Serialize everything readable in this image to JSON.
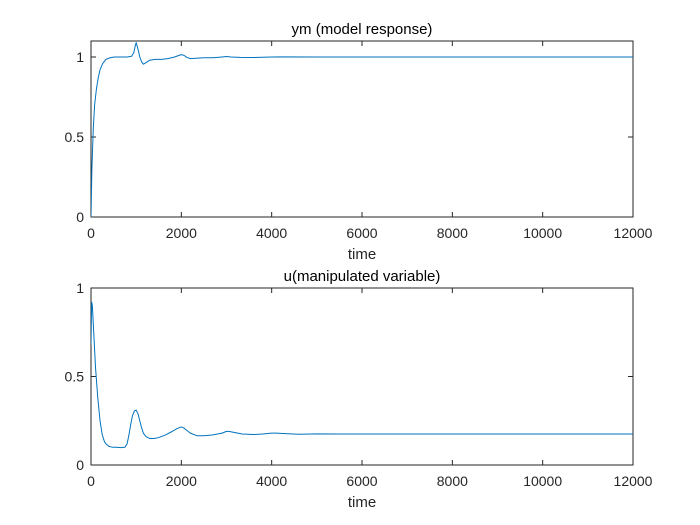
{
  "chart_data": [
    {
      "type": "line",
      "title": "ym (model response)",
      "xlabel": "time",
      "ylabel": "",
      "xlim": [
        0,
        12000
      ],
      "ylim": [
        0,
        1.1
      ],
      "xticks": [
        0,
        2000,
        4000,
        6000,
        8000,
        10000,
        12000
      ],
      "xtick_labels": [
        "0",
        "2000",
        "4000",
        "6000",
        "8000",
        "10000",
        "12000"
      ],
      "yticks": [
        0,
        0.5,
        1
      ],
      "ytick_labels": [
        "0",
        "0.5",
        "1"
      ],
      "grid": false,
      "color": "#0072BD",
      "series": [
        {
          "x": [
            0,
            20,
            50,
            80,
            120,
            160,
            200,
            260,
            330,
            420,
            520,
            650,
            800,
            900,
            950,
            980,
            1000,
            1040,
            1080,
            1120,
            1160,
            1220,
            1300,
            1420,
            1560,
            1700,
            1850,
            1950,
            2000,
            2060,
            2120,
            2200,
            2320,
            2500,
            2700,
            2900,
            3000,
            3100,
            3300,
            3600,
            4000,
            4200,
            5000,
            6000,
            7000,
            8000,
            9000,
            10000,
            11000,
            12000
          ],
          "y": [
            0,
            0.3,
            0.55,
            0.7,
            0.8,
            0.87,
            0.92,
            0.96,
            0.985,
            0.995,
            1.0,
            1.0,
            1.0,
            1.005,
            1.03,
            1.07,
            1.09,
            1.05,
            1.0,
            0.97,
            0.955,
            0.965,
            0.98,
            0.985,
            0.985,
            0.99,
            1.0,
            1.01,
            1.015,
            1.01,
            0.998,
            0.99,
            0.992,
            0.995,
            0.995,
            1.0,
            1.003,
            1.0,
            0.998,
            0.997,
            1.0,
            1.001,
            1.0,
            1.0,
            1.0,
            1.0,
            1.0,
            1.0,
            1.0,
            1.0
          ]
        }
      ]
    },
    {
      "type": "line",
      "title": "u(manipulated variable)",
      "xlabel": "time",
      "ylabel": "",
      "xlim": [
        0,
        12000
      ],
      "ylim": [
        0,
        1
      ],
      "xticks": [
        0,
        2000,
        4000,
        6000,
        8000,
        10000,
        12000
      ],
      "xtick_labels": [
        "0",
        "2000",
        "4000",
        "6000",
        "8000",
        "10000",
        "12000"
      ],
      "yticks": [
        0,
        0.5,
        1
      ],
      "ytick_labels": [
        "0",
        "0.5",
        "1"
      ],
      "grid": false,
      "color": "#0072BD",
      "series": [
        {
          "x": [
            0,
            15,
            30,
            60,
            100,
            150,
            200,
            250,
            300,
            350,
            400,
            480,
            560,
            650,
            750,
            800,
            840,
            880,
            920,
            960,
            1000,
            1040,
            1080,
            1120,
            1160,
            1220,
            1300,
            1400,
            1500,
            1650,
            1800,
            1900,
            2000,
            2050,
            2100,
            2200,
            2350,
            2500,
            2700,
            2900,
            3000,
            3050,
            3150,
            3350,
            3600,
            3800,
            4000,
            4100,
            4300,
            4600,
            5000,
            5500,
            6000,
            7000,
            8000,
            9000,
            10000,
            11000,
            12000
          ],
          "y": [
            0.68,
            0.92,
            0.9,
            0.75,
            0.55,
            0.38,
            0.25,
            0.17,
            0.13,
            0.115,
            0.105,
            0.1,
            0.1,
            0.098,
            0.1,
            0.12,
            0.17,
            0.23,
            0.28,
            0.305,
            0.31,
            0.29,
            0.25,
            0.21,
            0.18,
            0.16,
            0.15,
            0.15,
            0.155,
            0.17,
            0.19,
            0.205,
            0.215,
            0.21,
            0.2,
            0.18,
            0.165,
            0.165,
            0.17,
            0.18,
            0.19,
            0.19,
            0.185,
            0.175,
            0.172,
            0.175,
            0.18,
            0.18,
            0.177,
            0.174,
            0.176,
            0.175,
            0.175,
            0.175,
            0.175,
            0.175,
            0.175,
            0.175,
            0.175
          ]
        }
      ]
    }
  ]
}
